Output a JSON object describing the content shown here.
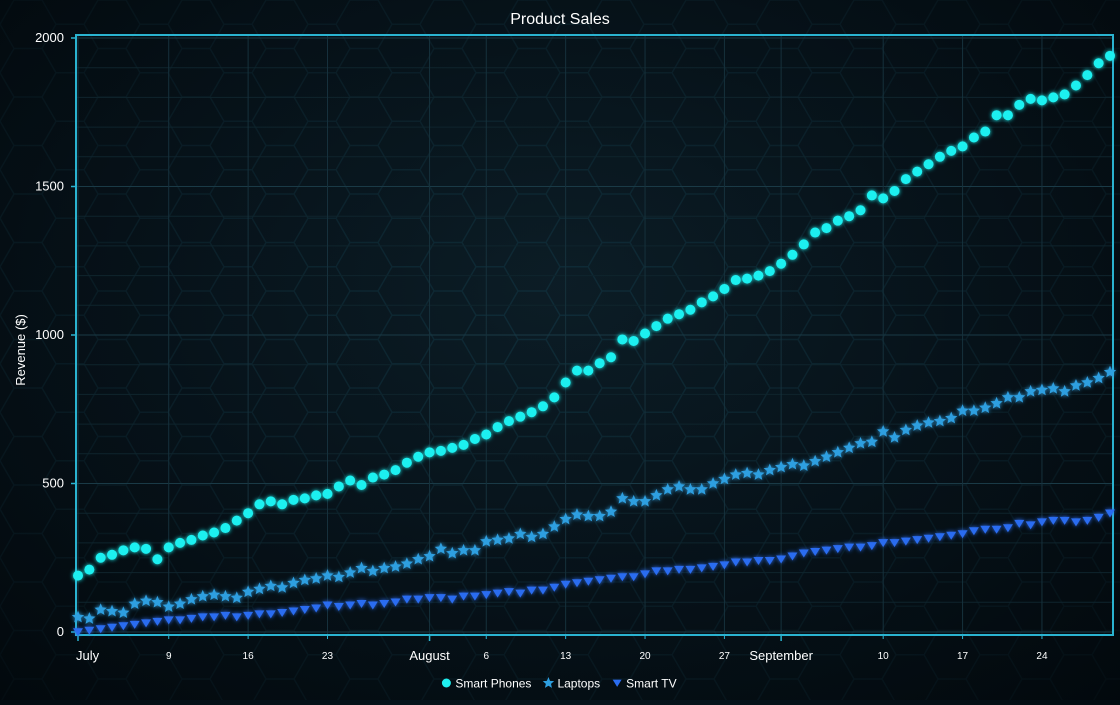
{
  "colors": {
    "background": "#06121a",
    "frame": "#2ab3d0",
    "grid": "#16313c",
    "text": "#ffffff",
    "smart_phones": "#1ff0f0",
    "laptops": "#2e9fe0",
    "smart_tv": "#2a6cf0"
  },
  "chart_data": {
    "type": "scatter",
    "title": "Product Sales",
    "ylabel": "Revenue ($)",
    "xlabel": "",
    "ylim": [
      0,
      2000
    ],
    "yticks": [
      0,
      500,
      1000,
      1500,
      2000
    ],
    "x_start": "2024-07-01",
    "x_end": "2024-09-30",
    "x_major_ticks": [
      {
        "date": "2024-07-01",
        "label": "July"
      },
      {
        "date": "2024-08-01",
        "label": "August"
      },
      {
        "date": "2024-09-01",
        "label": "September"
      }
    ],
    "x_minor_ticks": [
      {
        "date": "2024-07-09",
        "label": "9"
      },
      {
        "date": "2024-07-16",
        "label": "16"
      },
      {
        "date": "2024-07-23",
        "label": "23"
      },
      {
        "date": "2024-08-06",
        "label": "6"
      },
      {
        "date": "2024-08-13",
        "label": "13"
      },
      {
        "date": "2024-08-20",
        "label": "20"
      },
      {
        "date": "2024-08-27",
        "label": "27"
      },
      {
        "date": "2024-09-10",
        "label": "10"
      },
      {
        "date": "2024-09-17",
        "label": "17"
      },
      {
        "date": "2024-09-24",
        "label": "24"
      }
    ],
    "grid": true,
    "legend_position": "bottom-center",
    "series": [
      {
        "name": "Smart Phones",
        "marker": "circle",
        "x": [
          "2024-07-01",
          "2024-07-02",
          "2024-07-03",
          "2024-07-04",
          "2024-07-05",
          "2024-07-06",
          "2024-07-07",
          "2024-07-08",
          "2024-07-09",
          "2024-07-10",
          "2024-07-11",
          "2024-07-12",
          "2024-07-13",
          "2024-07-14",
          "2024-07-15",
          "2024-07-16",
          "2024-07-17",
          "2024-07-18",
          "2024-07-19",
          "2024-07-20",
          "2024-07-21",
          "2024-07-22",
          "2024-07-23",
          "2024-07-24",
          "2024-07-25",
          "2024-07-26",
          "2024-07-27",
          "2024-07-28",
          "2024-07-29",
          "2024-07-30",
          "2024-07-31",
          "2024-08-01",
          "2024-08-02",
          "2024-08-03",
          "2024-08-04",
          "2024-08-05",
          "2024-08-06",
          "2024-08-07",
          "2024-08-08",
          "2024-08-09",
          "2024-08-10",
          "2024-08-11",
          "2024-08-12",
          "2024-08-13",
          "2024-08-14",
          "2024-08-15",
          "2024-08-16",
          "2024-08-17",
          "2024-08-18",
          "2024-08-19",
          "2024-08-20",
          "2024-08-21",
          "2024-08-22",
          "2024-08-23",
          "2024-08-24",
          "2024-08-25",
          "2024-08-26",
          "2024-08-27",
          "2024-08-28",
          "2024-08-29",
          "2024-08-30",
          "2024-08-31",
          "2024-09-01",
          "2024-09-02",
          "2024-09-03",
          "2024-09-04",
          "2024-09-05",
          "2024-09-06",
          "2024-09-07",
          "2024-09-08",
          "2024-09-09",
          "2024-09-10",
          "2024-09-11",
          "2024-09-12",
          "2024-09-13",
          "2024-09-14",
          "2024-09-15",
          "2024-09-16",
          "2024-09-17",
          "2024-09-18",
          "2024-09-19",
          "2024-09-20",
          "2024-09-21",
          "2024-09-22",
          "2024-09-23",
          "2024-09-24",
          "2024-09-25",
          "2024-09-26",
          "2024-09-27",
          "2024-09-28",
          "2024-09-29",
          "2024-09-30"
        ],
        "y": [
          190,
          210,
          250,
          260,
          275,
          285,
          280,
          245,
          285,
          300,
          310,
          325,
          335,
          350,
          375,
          400,
          430,
          440,
          430,
          445,
          450,
          460,
          465,
          490,
          510,
          495,
          520,
          530,
          545,
          570,
          590,
          605,
          610,
          620,
          630,
          650,
          665,
          690,
          710,
          725,
          740,
          760,
          790,
          840,
          880,
          880,
          905,
          925,
          985,
          980,
          1005,
          1030,
          1055,
          1070,
          1085,
          1110,
          1130,
          1155,
          1185,
          1190,
          1200,
          1215,
          1240,
          1270,
          1305,
          1345,
          1360,
          1385,
          1400,
          1420,
          1470,
          1460,
          1485,
          1525,
          1550,
          1575,
          1600,
          1620,
          1635,
          1665,
          1685,
          1740,
          1740,
          1775,
          1795,
          1790,
          1800,
          1810,
          1840,
          1875,
          1915,
          1940
        ]
      },
      {
        "name": "Laptops",
        "marker": "star",
        "x": [
          "2024-07-01",
          "2024-07-02",
          "2024-07-03",
          "2024-07-04",
          "2024-07-05",
          "2024-07-06",
          "2024-07-07",
          "2024-07-08",
          "2024-07-09",
          "2024-07-10",
          "2024-07-11",
          "2024-07-12",
          "2024-07-13",
          "2024-07-14",
          "2024-07-15",
          "2024-07-16",
          "2024-07-17",
          "2024-07-18",
          "2024-07-19",
          "2024-07-20",
          "2024-07-21",
          "2024-07-22",
          "2024-07-23",
          "2024-07-24",
          "2024-07-25",
          "2024-07-26",
          "2024-07-27",
          "2024-07-28",
          "2024-07-29",
          "2024-07-30",
          "2024-07-31",
          "2024-08-01",
          "2024-08-02",
          "2024-08-03",
          "2024-08-04",
          "2024-08-05",
          "2024-08-06",
          "2024-08-07",
          "2024-08-08",
          "2024-08-09",
          "2024-08-10",
          "2024-08-11",
          "2024-08-12",
          "2024-08-13",
          "2024-08-14",
          "2024-08-15",
          "2024-08-16",
          "2024-08-17",
          "2024-08-18",
          "2024-08-19",
          "2024-08-20",
          "2024-08-21",
          "2024-08-22",
          "2024-08-23",
          "2024-08-24",
          "2024-08-25",
          "2024-08-26",
          "2024-08-27",
          "2024-08-28",
          "2024-08-29",
          "2024-08-30",
          "2024-08-31",
          "2024-09-01",
          "2024-09-02",
          "2024-09-03",
          "2024-09-04",
          "2024-09-05",
          "2024-09-06",
          "2024-09-07",
          "2024-09-08",
          "2024-09-09",
          "2024-09-10",
          "2024-09-11",
          "2024-09-12",
          "2024-09-13",
          "2024-09-14",
          "2024-09-15",
          "2024-09-16",
          "2024-09-17",
          "2024-09-18",
          "2024-09-19",
          "2024-09-20",
          "2024-09-21",
          "2024-09-22",
          "2024-09-23",
          "2024-09-24",
          "2024-09-25",
          "2024-09-26",
          "2024-09-27",
          "2024-09-28",
          "2024-09-29",
          "2024-09-30"
        ],
        "y": [
          50,
          45,
          75,
          70,
          65,
          95,
          105,
          100,
          85,
          95,
          110,
          120,
          125,
          120,
          115,
          135,
          145,
          155,
          150,
          165,
          175,
          180,
          190,
          185,
          200,
          215,
          205,
          215,
          220,
          230,
          245,
          255,
          280,
          265,
          275,
          275,
          305,
          310,
          315,
          330,
          320,
          330,
          355,
          380,
          395,
          390,
          390,
          405,
          450,
          440,
          440,
          460,
          480,
          490,
          480,
          480,
          500,
          515,
          530,
          535,
          530,
          545,
          555,
          565,
          560,
          575,
          590,
          605,
          620,
          635,
          640,
          675,
          655,
          680,
          695,
          705,
          710,
          720,
          745,
          745,
          755,
          770,
          790,
          790,
          810,
          815,
          820,
          810,
          830,
          840,
          855,
          875
        ]
      },
      {
        "name": "Smart TV",
        "marker": "triangle-down",
        "x": [
          "2024-07-01",
          "2024-07-02",
          "2024-07-03",
          "2024-07-04",
          "2024-07-05",
          "2024-07-06",
          "2024-07-07",
          "2024-07-08",
          "2024-07-09",
          "2024-07-10",
          "2024-07-11",
          "2024-07-12",
          "2024-07-13",
          "2024-07-14",
          "2024-07-15",
          "2024-07-16",
          "2024-07-17",
          "2024-07-18",
          "2024-07-19",
          "2024-07-20",
          "2024-07-21",
          "2024-07-22",
          "2024-07-23",
          "2024-07-24",
          "2024-07-25",
          "2024-07-26",
          "2024-07-27",
          "2024-07-28",
          "2024-07-29",
          "2024-07-30",
          "2024-07-31",
          "2024-08-01",
          "2024-08-02",
          "2024-08-03",
          "2024-08-04",
          "2024-08-05",
          "2024-08-06",
          "2024-08-07",
          "2024-08-08",
          "2024-08-09",
          "2024-08-10",
          "2024-08-11",
          "2024-08-12",
          "2024-08-13",
          "2024-08-14",
          "2024-08-15",
          "2024-08-16",
          "2024-08-17",
          "2024-08-18",
          "2024-08-19",
          "2024-08-20",
          "2024-08-21",
          "2024-08-22",
          "2024-08-23",
          "2024-08-24",
          "2024-08-25",
          "2024-08-26",
          "2024-08-27",
          "2024-08-28",
          "2024-08-29",
          "2024-08-30",
          "2024-08-31",
          "2024-09-01",
          "2024-09-02",
          "2024-09-03",
          "2024-09-04",
          "2024-09-05",
          "2024-09-06",
          "2024-09-07",
          "2024-09-08",
          "2024-09-09",
          "2024-09-10",
          "2024-09-11",
          "2024-09-12",
          "2024-09-13",
          "2024-09-14",
          "2024-09-15",
          "2024-09-16",
          "2024-09-17",
          "2024-09-18",
          "2024-09-19",
          "2024-09-20",
          "2024-09-21",
          "2024-09-22",
          "2024-09-23",
          "2024-09-24",
          "2024-09-25",
          "2024-09-26",
          "2024-09-27",
          "2024-09-28",
          "2024-09-29",
          "2024-09-30"
        ],
        "y": [
          0,
          5,
          10,
          15,
          20,
          25,
          30,
          35,
          40,
          40,
          45,
          50,
          50,
          55,
          50,
          55,
          60,
          60,
          65,
          70,
          75,
          80,
          90,
          85,
          90,
          95,
          90,
          95,
          100,
          110,
          110,
          115,
          115,
          110,
          120,
          120,
          125,
          130,
          135,
          130,
          140,
          140,
          150,
          160,
          165,
          170,
          175,
          180,
          185,
          185,
          195,
          205,
          205,
          210,
          210,
          215,
          220,
          225,
          235,
          235,
          240,
          240,
          245,
          255,
          265,
          270,
          275,
          280,
          285,
          285,
          290,
          300,
          300,
          305,
          310,
          315,
          320,
          325,
          330,
          340,
          345,
          345,
          350,
          365,
          360,
          370,
          375,
          375,
          370,
          375,
          385,
          400
        ]
      }
    ]
  }
}
